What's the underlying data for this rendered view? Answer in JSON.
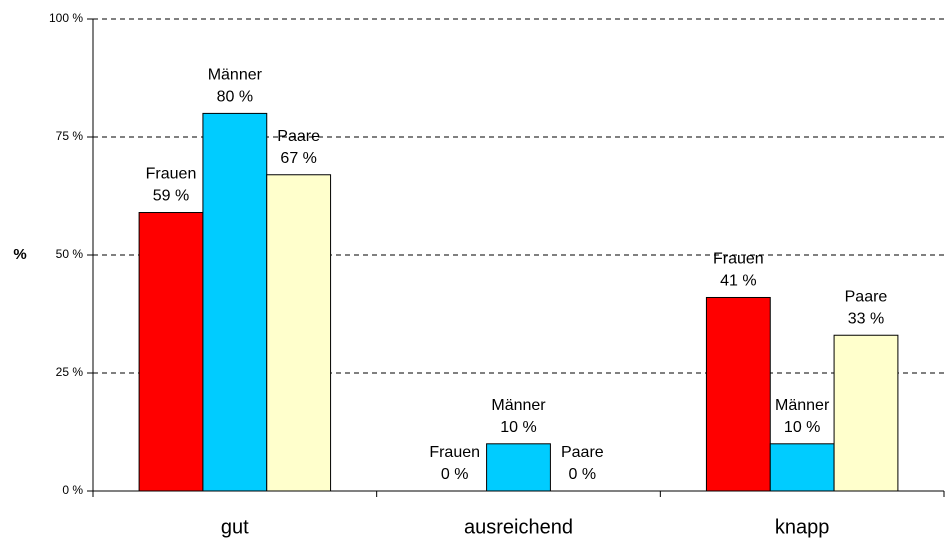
{
  "chart_data": {
    "type": "bar",
    "y_label": "%",
    "categories": [
      "gut",
      "ausreichend",
      "knapp"
    ],
    "series": [
      {
        "name": "Frauen",
        "color": "#ff0000",
        "values": [
          59,
          0,
          41
        ],
        "value_labels": [
          "59 %",
          "0 %",
          "41 %"
        ]
      },
      {
        "name": "Männer",
        "color": "#00ccff",
        "values": [
          80,
          10,
          10
        ],
        "value_labels": [
          "80 %",
          "10 %",
          "10 %"
        ]
      },
      {
        "name": "Paare",
        "color": "#ffffcc",
        "values": [
          67,
          0,
          33
        ],
        "value_labels": [
          "67 %",
          "0 %",
          "33 %"
        ]
      }
    ],
    "ylim": [
      0,
      100
    ],
    "yticks": [
      {
        "value": 0,
        "label": "0 %"
      },
      {
        "value": 25,
        "label": "25 %"
      },
      {
        "value": 50,
        "label": "50 %"
      },
      {
        "value": 75,
        "label": "75 %"
      },
      {
        "value": 100,
        "label": "100 %"
      }
    ],
    "grid": true
  }
}
